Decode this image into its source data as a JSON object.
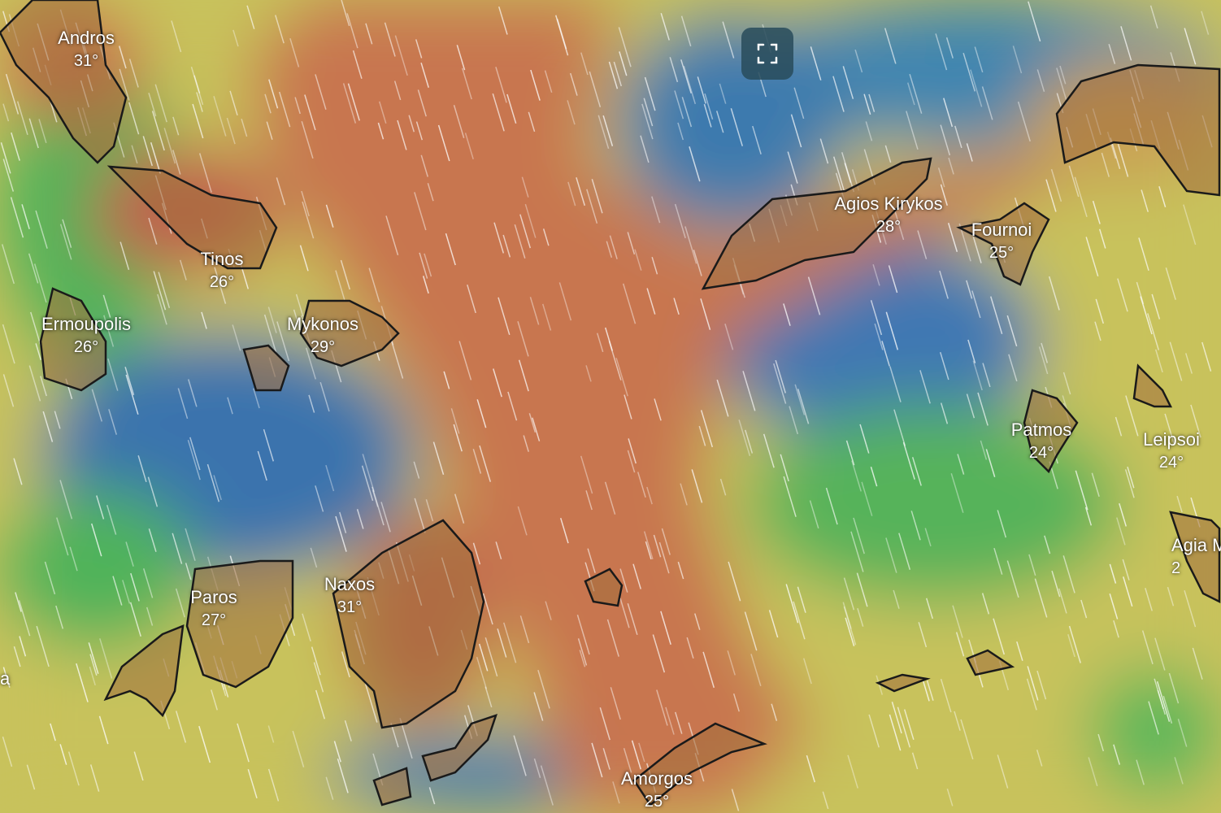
{
  "map": {
    "layer": "temperature",
    "colors": {
      "hot": "#c8704e",
      "warm": "#c99a55",
      "mild": "#c8c45c",
      "cool": "#6cbf5a",
      "cold": "#3c78ae",
      "land_outline": "#1a1a1a"
    },
    "places": [
      {
        "name": "Andros",
        "temp": "31°"
      },
      {
        "name": "Tinos",
        "temp": "26°"
      },
      {
        "name": "Ermoupolis",
        "temp": "26°"
      },
      {
        "name": "Mykonos",
        "temp": "29°"
      },
      {
        "name": "Agios Kirykos",
        "temp": "28°"
      },
      {
        "name": "Fournoi",
        "temp": "25°"
      },
      {
        "name": "Patmos",
        "temp": "24°"
      },
      {
        "name": "Leipsoi",
        "temp": "24°"
      },
      {
        "name": "Agia M",
        "temp": "2"
      },
      {
        "name": "Paros",
        "temp": "27°"
      },
      {
        "name": "Naxos",
        "temp": "31°"
      },
      {
        "name": "Amorgos",
        "temp": "25°"
      },
      {
        "name": "a",
        "temp": ""
      }
    ]
  },
  "controls": {
    "fullscreen_icon": "fullscreen-icon"
  }
}
